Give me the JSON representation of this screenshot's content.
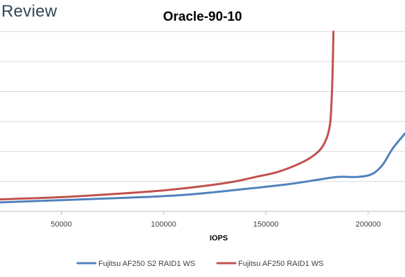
{
  "brand": {
    "text": "Review"
  },
  "chart_data": {
    "type": "line",
    "title": "Oracle-90-10",
    "xlabel": "IOPS",
    "ylabel": "",
    "xlim": [
      20000,
      218000
    ],
    "ylim": [
      0,
      13
    ],
    "x_ticks": [
      50000,
      100000,
      150000,
      200000
    ],
    "x_tick_labels": [
      "50000",
      "100000",
      "150000",
      "200000"
    ],
    "y_grid_values": [
      2,
      4,
      6,
      8,
      10,
      12
    ],
    "grid": true,
    "legend_position": "bottom",
    "series": [
      {
        "name": "Fujitsu AF250 S2 RAID1 WS",
        "color": "#4f81bd",
        "x": [
          20000,
          50000,
          80000,
          110000,
          140000,
          160000,
          175000,
          185000,
          195000,
          202000,
          207000,
          212000,
          218000
        ],
        "y": [
          0.6,
          0.75,
          0.9,
          1.1,
          1.5,
          1.8,
          2.1,
          2.3,
          2.3,
          2.5,
          3.1,
          4.2,
          5.2
        ]
      },
      {
        "name": "Fujitsu AF250 RAID1 WS",
        "color": "#c0504d",
        "x": [
          20000,
          50000,
          80000,
          100000,
          120000,
          135000,
          145000,
          155000,
          165000,
          172000,
          177000,
          180000,
          181500,
          182300,
          182800,
          183000
        ],
        "y": [
          0.8,
          0.95,
          1.2,
          1.4,
          1.7,
          2.0,
          2.3,
          2.6,
          3.1,
          3.6,
          4.2,
          5.0,
          6.0,
          8.0,
          10.5,
          12.0
        ]
      }
    ]
  }
}
